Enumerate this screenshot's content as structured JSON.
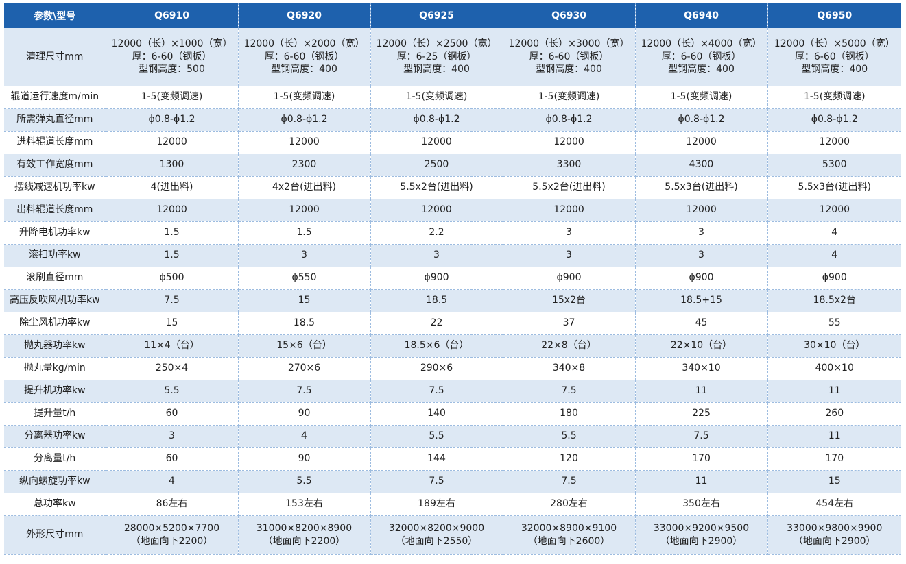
{
  "table": {
    "header_label": "参数\\型号",
    "models": [
      "Q6910",
      "Q6920",
      "Q6925",
      "Q6930",
      "Q6940",
      "Q6950"
    ],
    "rows": [
      {
        "label": "清理尺寸mm",
        "values": [
          [
            "12000（长）×1000（宽）",
            "厚：6-60（钢板）",
            "型钢高度：500"
          ],
          [
            "12000（长）×2000（宽）",
            "厚：6-60（钢板）",
            "型钢高度：400"
          ],
          [
            "12000（长）×2500（宽）",
            "厚：6-25（钢板）",
            "型钢高度：400"
          ],
          [
            "12000（长）×3000（宽）",
            "厚：6-60（钢板）",
            "型钢高度：400"
          ],
          [
            "12000（长）×4000（宽）",
            "厚：6-60（钢板）",
            "型钢高度：400"
          ],
          [
            "12000（长）×5000（宽）",
            "厚：6-60（钢板）",
            "型钢高度：400"
          ]
        ]
      },
      {
        "label": "辊道运行速度m/min",
        "values": [
          "1-5(变频调速)",
          "1-5(变频调速)",
          "1-5(变频调速)",
          "1-5(变频调速)",
          "1-5(变频调速)",
          "1-5(变频调速)"
        ]
      },
      {
        "label": "所需弹丸直径mm",
        "values": [
          "ϕ0.8-ϕ1.2",
          "ϕ0.8-ϕ1.2",
          "ϕ0.8-ϕ1.2",
          "ϕ0.8-ϕ1.2",
          "ϕ0.8-ϕ1.2",
          "ϕ0.8-ϕ1.2"
        ]
      },
      {
        "label": "进料辊道长度mm",
        "values": [
          "12000",
          "12000",
          "12000",
          "12000",
          "12000",
          "12000"
        ]
      },
      {
        "label": "有效工作宽度mm",
        "values": [
          "1300",
          "2300",
          "2500",
          "3300",
          "4300",
          "5300"
        ]
      },
      {
        "label": "摆线减速机功率kw",
        "values": [
          "4(进出料)",
          "4x2台(进出料)",
          "5.5x2台(进出料)",
          "5.5x2台(进出料)",
          "5.5x3台(进出料)",
          "5.5x3台(进出料)"
        ]
      },
      {
        "label": "出料辊道长度mm",
        "values": [
          "12000",
          "12000",
          "12000",
          "12000",
          "12000",
          "12000"
        ]
      },
      {
        "label": "升降电机功率kw",
        "values": [
          "1.5",
          "1.5",
          "2.2",
          "3",
          "3",
          "4"
        ]
      },
      {
        "label": "滚扫功率kw",
        "values": [
          "1.5",
          "3",
          "3",
          "3",
          "3",
          "4"
        ]
      },
      {
        "label": "滚刷直径mm",
        "values": [
          "ϕ500",
          "ϕ550",
          "ϕ900",
          "ϕ900",
          "ϕ900",
          "ϕ900"
        ]
      },
      {
        "label": "高压反吹风机功率kw",
        "values": [
          "7.5",
          "15",
          "18.5",
          "15x2台",
          "18.5+15",
          "18.5x2台"
        ]
      },
      {
        "label": "除尘风机功率kw",
        "values": [
          "15",
          "18.5",
          "22",
          "37",
          "45",
          "55"
        ]
      },
      {
        "label": "抛丸器功率kw",
        "values": [
          "11×4（台）",
          "15×6（台）",
          "18.5×6（台）",
          "22×8（台）",
          "22×10（台）",
          "30×10（台）"
        ]
      },
      {
        "label": "抛丸量kg/min",
        "values": [
          "250×4",
          "270×6",
          "290×6",
          "340×8",
          "340×10",
          "400×10"
        ]
      },
      {
        "label": "提升机功率kw",
        "values": [
          "5.5",
          "7.5",
          "7.5",
          "7.5",
          "11",
          "11"
        ]
      },
      {
        "label": "提升量t/h",
        "values": [
          "60",
          "90",
          "140",
          "180",
          "225",
          "260"
        ]
      },
      {
        "label": "分离器功率kw",
        "values": [
          "3",
          "4",
          "5.5",
          "5.5",
          "7.5",
          "11"
        ]
      },
      {
        "label": "分离量t/h",
        "values": [
          "60",
          "90",
          "144",
          "120",
          "170",
          "170"
        ]
      },
      {
        "label": "纵向螺旋功率kw",
        "values": [
          "4",
          "5.5",
          "7.5",
          "7.5",
          "11",
          "15"
        ]
      },
      {
        "label": "总功率kw",
        "values": [
          "86左右",
          "153左右",
          "189左右",
          "280左右",
          "350左右",
          "454左右"
        ]
      },
      {
        "label": "外形尺寸mm",
        "values": [
          [
            "28000×5200×7700",
            "（地面向下2200）"
          ],
          [
            "31000×8200×8900",
            "（地面向下2200）"
          ],
          [
            "32000×8200×9000",
            "（地面向下2550）"
          ],
          [
            "32000×8900×9100",
            "（地面向下2600）"
          ],
          [
            "33000×9200×9500",
            "（地面向下2900）"
          ],
          [
            "33000×9800×9900",
            "（地面向下2900）"
          ]
        ]
      }
    ]
  },
  "colors": {
    "header_bg": "#1e61ad",
    "stripe": "#dde8f4"
  }
}
